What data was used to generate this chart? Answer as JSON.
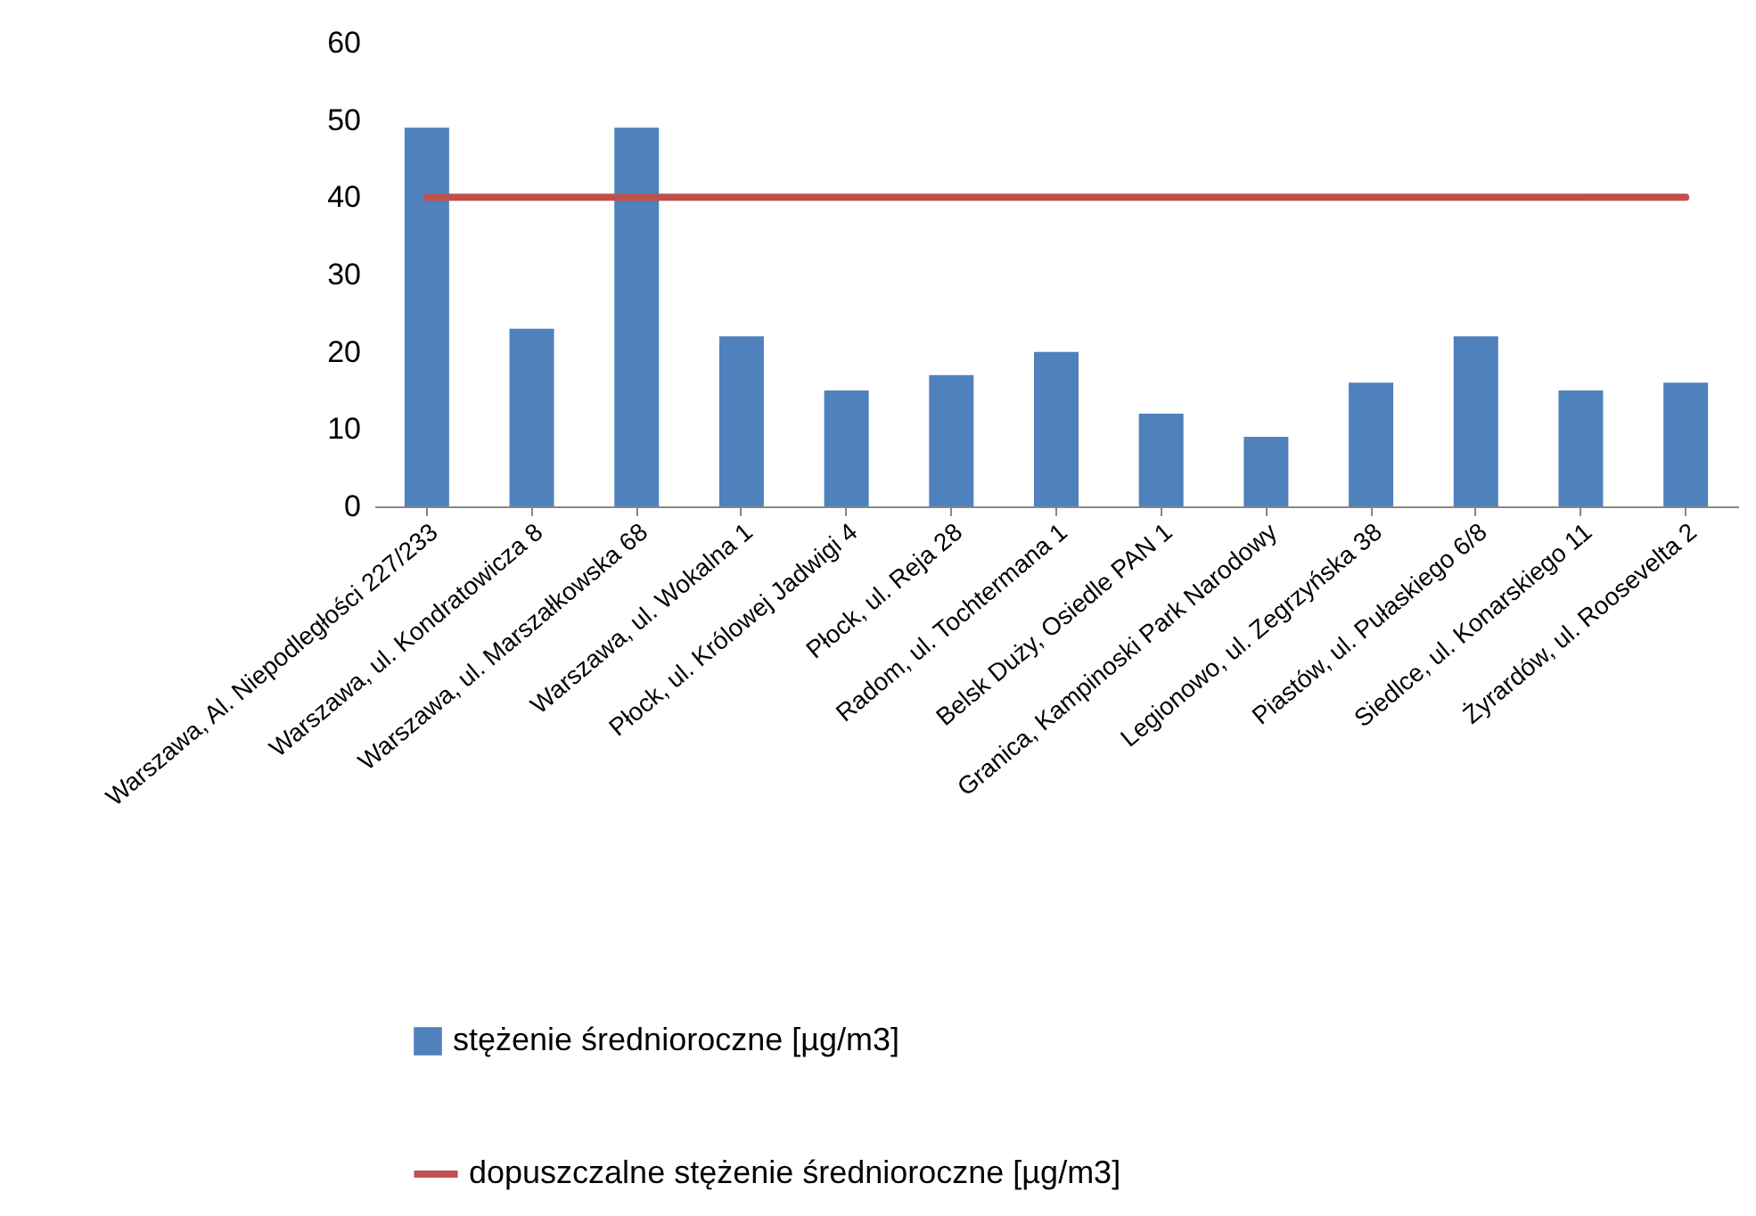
{
  "chart_data": {
    "type": "bar",
    "categories": [
      "Warszawa, Al. Niepodległości 227/233",
      "Warszawa, ul. Kondratowicza 8",
      "Warszawa, ul. Marszałkowska 68",
      "Warszawa, ul. Wokalna 1",
      "Płock, ul. Królowej Jadwigi 4",
      "Płock, ul. Reja 28",
      "Radom, ul. Tochtermana 1",
      "Belsk Duży, Osiedle PAN 1",
      "Granica, Kampinoski Park Narodowy",
      "Legionowo, ul. Zegrzyńska 38",
      "Piastów, ul. Pułaskiego 6/8",
      "Siedlce, ul. Konarskiego 11",
      "Żyrardów, ul. Roosevelta 2"
    ],
    "series": [
      {
        "name": "stężenie średnioroczne [µg/m3]",
        "color": "#4f81bd",
        "values": [
          49,
          23,
          49,
          22,
          15,
          17,
          20,
          12,
          9,
          16,
          22,
          15,
          16
        ]
      },
      {
        "name": "dopuszczalne stężenie średnioroczne [µg/m3]",
        "type": "line",
        "color": "#c0504d",
        "values": [
          40,
          40,
          40,
          40,
          40,
          40,
          40,
          40,
          40,
          40,
          40,
          40,
          40
        ]
      }
    ],
    "ylim": [
      0,
      60
    ],
    "yticks": [
      0,
      10,
      20,
      30,
      40,
      50,
      60
    ],
    "grid": false,
    "legend": "bottom"
  }
}
